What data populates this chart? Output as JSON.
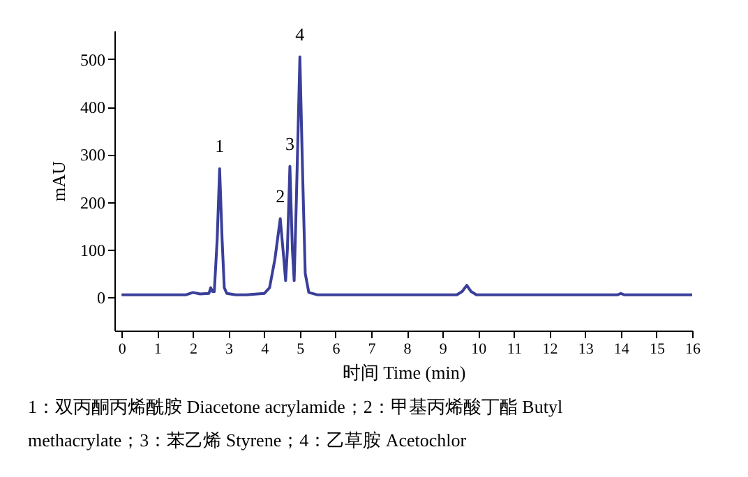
{
  "chart_data": {
    "type": "line",
    "xlabel": "时间 Time (min)",
    "ylabel": "mAU",
    "x": [
      0,
      1.8,
      2.0,
      2.2,
      2.45,
      2.5,
      2.55,
      2.6,
      2.68,
      2.75,
      2.82,
      2.88,
      2.95,
      3.2,
      3.5,
      4.0,
      4.15,
      4.3,
      4.45,
      4.55,
      4.6,
      4.65,
      4.72,
      4.79,
      4.84,
      4.9,
      5.0,
      5.08,
      5.15,
      5.25,
      5.5,
      6,
      9.4,
      9.55,
      9.68,
      9.8,
      9.95,
      13.9,
      14.0,
      14.1,
      16
    ],
    "series": [
      {
        "color": "#3a3f9a",
        "values": [
          5,
          5,
          10,
          7,
          8,
          20,
          12,
          12,
          120,
          270,
          120,
          20,
          8,
          5,
          5,
          8,
          20,
          80,
          165,
          80,
          35,
          100,
          275,
          100,
          35,
          200,
          505,
          250,
          50,
          10,
          5,
          5,
          5,
          12,
          25,
          12,
          5,
          5,
          8,
          5,
          5
        ]
      }
    ],
    "xlim": [
      -0.2,
      16
    ],
    "ylim": [
      -70,
      560
    ],
    "xticks": [
      0,
      1,
      2,
      3,
      4,
      5,
      6,
      7,
      8,
      9,
      10,
      11,
      12,
      13,
      14,
      15,
      16
    ],
    "yticks": [
      0,
      100,
      200,
      300,
      400,
      500
    ],
    "grid": false,
    "marker": "none",
    "line_style": "solid",
    "annotations": [
      {
        "text": "1",
        "x": 2.75,
        "y": 270
      },
      {
        "text": "2",
        "x": 4.45,
        "y": 165
      },
      {
        "text": "3",
        "x": 4.72,
        "y": 275
      },
      {
        "text": "4",
        "x": 5.0,
        "y": 505
      },
      "1：双丙酮丙烯酰胺 Diacetone acrylamide；2：甲基丙烯酸丁酯 Butyl methacrylate；3：苯乙烯 Styrene；4：乙草胺 Acetochlor"
    ]
  }
}
